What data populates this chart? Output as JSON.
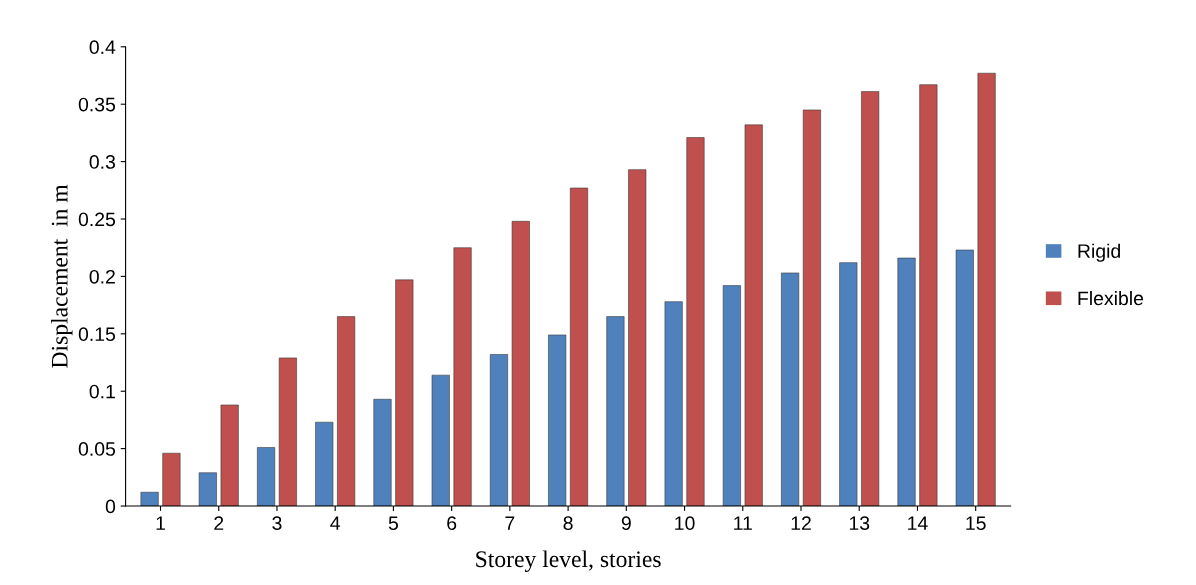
{
  "chart_data": {
    "type": "bar",
    "xlabel": "Storey level, stories",
    "ylabel": "Displacement  in m",
    "categories": [
      "1",
      "2",
      "3",
      "4",
      "5",
      "6",
      "7",
      "8",
      "9",
      "10",
      "11",
      "12",
      "13",
      "14",
      "15"
    ],
    "series": [
      {
        "name": "Rigid",
        "color": "#4f81bd",
        "values": [
          0.012,
          0.029,
          0.051,
          0.073,
          0.093,
          0.114,
          0.132,
          0.149,
          0.165,
          0.178,
          0.192,
          0.203,
          0.212,
          0.216,
          0.223
        ]
      },
      {
        "name": "Flexible",
        "color": "#c0504d",
        "values": [
          0.046,
          0.088,
          0.129,
          0.165,
          0.197,
          0.225,
          0.248,
          0.277,
          0.293,
          0.321,
          0.332,
          0.345,
          0.361,
          0.367,
          0.377
        ]
      }
    ],
    "ylim": [
      0,
      0.4
    ],
    "yticks": [
      0,
      0.05,
      0.1,
      0.15,
      0.2,
      0.25,
      0.3,
      0.35,
      0.4
    ],
    "grid": false,
    "legend": "right"
  }
}
